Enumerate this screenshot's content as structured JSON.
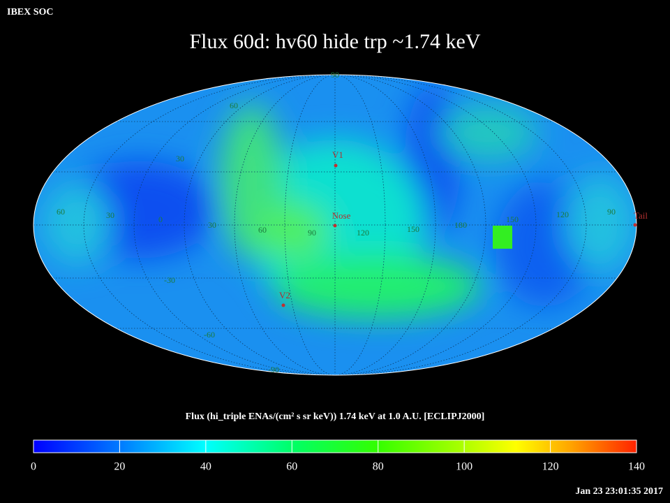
{
  "header": "IBEX SOC",
  "title": "Flux   60d: hv60 hide trp ~1.74 keV",
  "map": {
    "grid_labels": [
      "90",
      "60",
      "30",
      "60",
      "30",
      "0",
      "30",
      "60",
      "90",
      "120",
      "150",
      "180",
      "150",
      "120",
      "90",
      "-30",
      "-60",
      "-90"
    ],
    "markers": [
      "V1",
      "Nose",
      "V2",
      "Tail"
    ]
  },
  "colorbar": {
    "label": "Flux (hi_triple ENAs/(cm² s sr keV))  1.74 keV at 1.0 A.U. [ECLIPJ2000]",
    "range": [
      0,
      140
    ],
    "ticks": [
      0,
      20,
      40,
      60,
      80,
      100,
      120,
      140
    ]
  },
  "timestamp": "Jan 23 23:01:35 2017"
}
